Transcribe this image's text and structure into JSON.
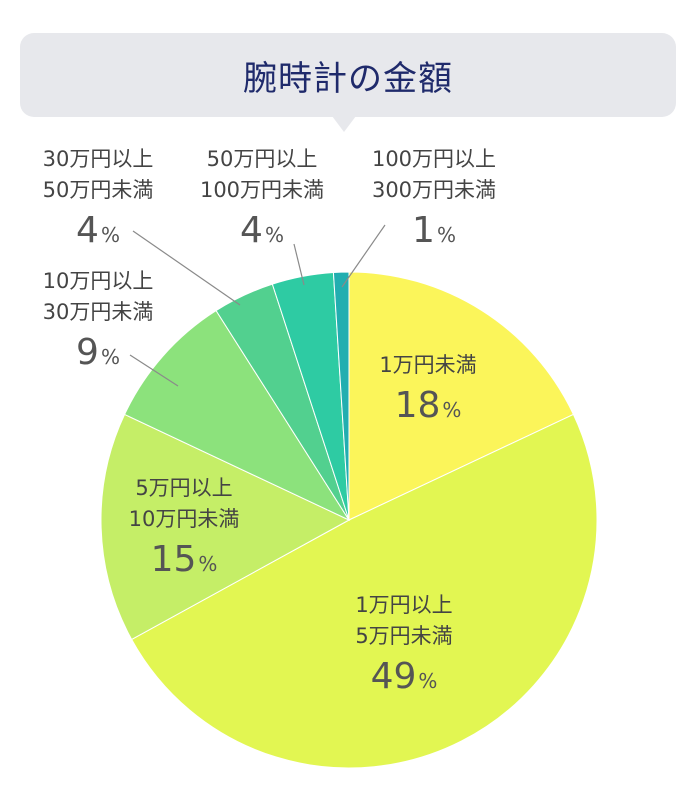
{
  "chart_data": {
    "type": "pie",
    "title": "腕時計の金額",
    "unit": "%",
    "slices": [
      {
        "label": [
          "1万円未満"
        ],
        "value": 18,
        "color": "#fbf55a"
      },
      {
        "label": [
          "1万円以上",
          "5万円未満"
        ],
        "value": 49,
        "color": "#e2f652"
      },
      {
        "label": [
          "5万円以上",
          "10万円未満"
        ],
        "value": 15,
        "color": "#c5ee67"
      },
      {
        "label": [
          "10万円以上",
          "30万円未満"
        ],
        "value": 9,
        "color": "#8ce27c"
      },
      {
        "label": [
          "30万円以上",
          "50万円未満"
        ],
        "value": 4,
        "color": "#52d08f"
      },
      {
        "label": [
          "50万円以上",
          "100万円未満"
        ],
        "value": 4,
        "color": "#2ecba3"
      },
      {
        "label": [
          "100万円以上",
          "300万円未満"
        ],
        "value": 1,
        "color": "#22aeb0"
      }
    ]
  }
}
